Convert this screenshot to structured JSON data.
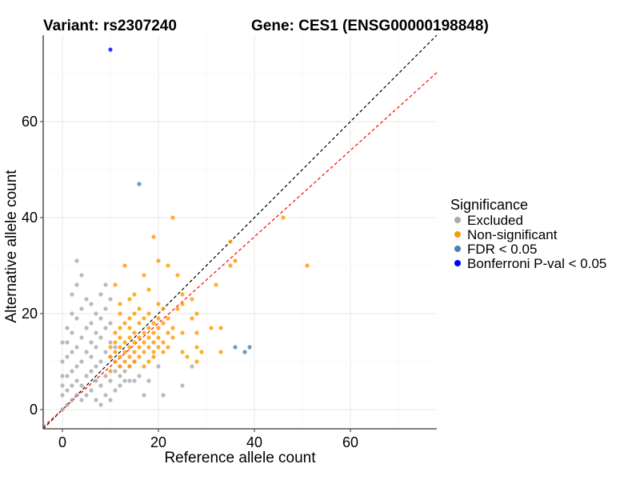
{
  "chart_data": {
    "type": "scatter",
    "title_variant": "Variant: rs2307240",
    "title_gene": "Gene: CES1 (ENSG00000198848)",
    "xlabel": "Reference allele count",
    "ylabel": "Alternative allele count",
    "xlim": [
      -4,
      78
    ],
    "ylim": [
      -4,
      78
    ],
    "x_ticks": [
      0,
      20,
      40,
      60
    ],
    "y_ticks": [
      0,
      20,
      40,
      60
    ],
    "grid": true,
    "legend_position": "right",
    "reference_lines": [
      {
        "name": "identity",
        "slope": 1.0,
        "intercept": 0,
        "color": "#000000",
        "style": "dashed"
      },
      {
        "name": "expected-ratio",
        "slope": 0.9,
        "intercept": 0,
        "color": "#ff0000",
        "style": "dashed"
      }
    ],
    "legend": {
      "title": "Significance",
      "entries": [
        {
          "label": "Excluded",
          "color": "#aaaaaa"
        },
        {
          "label": "Non-significant",
          "color": "#ff9900"
        },
        {
          "label": "FDR < 0.05",
          "color": "#4682b4"
        },
        {
          "label": "Bonferroni P-val < 0.05",
          "color": "#0000ff"
        }
      ]
    },
    "series": [
      {
        "name": "Excluded",
        "color": "#aaaaaa",
        "points": [
          [
            0,
            0
          ],
          [
            0,
            3
          ],
          [
            0,
            5
          ],
          [
            0,
            7
          ],
          [
            0,
            10
          ],
          [
            0,
            14
          ],
          [
            1,
            1
          ],
          [
            1,
            4
          ],
          [
            1,
            7
          ],
          [
            1,
            11
          ],
          [
            1,
            14
          ],
          [
            1,
            17
          ],
          [
            2,
            2
          ],
          [
            2,
            5
          ],
          [
            2,
            8
          ],
          [
            2,
            12
          ],
          [
            2,
            16
          ],
          [
            2,
            20
          ],
          [
            2,
            24
          ],
          [
            3,
            3
          ],
          [
            3,
            6
          ],
          [
            3,
            9
          ],
          [
            3,
            13
          ],
          [
            3,
            19
          ],
          [
            3,
            26
          ],
          [
            3,
            31
          ],
          [
            4,
            2
          ],
          [
            4,
            5
          ],
          [
            4,
            10
          ],
          [
            4,
            15
          ],
          [
            4,
            21
          ],
          [
            4,
            28
          ],
          [
            5,
            3
          ],
          [
            5,
            7
          ],
          [
            5,
            12
          ],
          [
            5,
            17
          ],
          [
            5,
            23
          ],
          [
            6,
            4
          ],
          [
            6,
            8
          ],
          [
            6,
            11
          ],
          [
            6,
            14
          ],
          [
            6,
            18
          ],
          [
            6,
            22
          ],
          [
            7,
            2
          ],
          [
            7,
            6
          ],
          [
            7,
            9
          ],
          [
            7,
            13
          ],
          [
            7,
            16
          ],
          [
            7,
            20
          ],
          [
            8,
            1
          ],
          [
            8,
            5
          ],
          [
            8,
            10
          ],
          [
            8,
            15
          ],
          [
            8,
            19
          ],
          [
            8,
            24
          ],
          [
            9,
            3
          ],
          [
            9,
            7
          ],
          [
            9,
            12
          ],
          [
            9,
            17
          ],
          [
            9,
            21
          ],
          [
            9,
            26
          ],
          [
            10,
            2
          ],
          [
            10,
            6
          ],
          [
            10,
            11
          ],
          [
            10,
            14
          ],
          [
            10,
            18
          ],
          [
            10,
            23
          ],
          [
            11,
            4
          ],
          [
            11,
            8
          ],
          [
            11,
            13
          ],
          [
            12,
            5
          ],
          [
            12,
            9
          ],
          [
            12,
            7
          ],
          [
            13,
            6
          ],
          [
            13,
            8
          ],
          [
            14,
            6
          ],
          [
            14,
            9
          ],
          [
            15,
            6
          ],
          [
            15,
            10
          ],
          [
            16,
            7
          ],
          [
            17,
            3
          ],
          [
            18,
            6
          ],
          [
            20,
            9
          ],
          [
            21,
            3
          ],
          [
            25,
            5
          ],
          [
            27,
            9
          ]
        ]
      },
      {
        "name": "Non-significant",
        "color": "#ff9900",
        "points": [
          [
            10,
            8
          ],
          [
            10,
            11
          ],
          [
            10,
            13
          ],
          [
            11,
            10
          ],
          [
            11,
            12
          ],
          [
            11,
            14
          ],
          [
            11,
            16
          ],
          [
            11,
            26
          ],
          [
            12,
            9
          ],
          [
            12,
            11
          ],
          [
            12,
            13
          ],
          [
            12,
            15
          ],
          [
            12,
            17
          ],
          [
            12,
            20
          ],
          [
            12,
            22
          ],
          [
            13,
            10
          ],
          [
            13,
            12
          ],
          [
            13,
            14
          ],
          [
            13,
            18
          ],
          [
            13,
            30
          ],
          [
            14,
            9
          ],
          [
            14,
            11
          ],
          [
            14,
            13
          ],
          [
            14,
            15
          ],
          [
            14,
            17
          ],
          [
            14,
            19
          ],
          [
            14,
            23
          ],
          [
            15,
            10
          ],
          [
            15,
            12
          ],
          [
            15,
            14
          ],
          [
            15,
            16
          ],
          [
            15,
            20
          ],
          [
            15,
            24
          ],
          [
            16,
            11
          ],
          [
            16,
            13
          ],
          [
            16,
            15
          ],
          [
            16,
            18
          ],
          [
            16,
            21
          ],
          [
            17,
            9
          ],
          [
            17,
            12
          ],
          [
            17,
            14
          ],
          [
            17,
            16
          ],
          [
            17,
            19
          ],
          [
            17,
            28
          ],
          [
            18,
            10
          ],
          [
            18,
            13
          ],
          [
            18,
            15
          ],
          [
            18,
            17
          ],
          [
            18,
            20
          ],
          [
            18,
            25
          ],
          [
            19,
            11
          ],
          [
            19,
            12
          ],
          [
            19,
            14
          ],
          [
            19,
            16
          ],
          [
            19,
            18
          ],
          [
            19,
            36
          ],
          [
            20,
            13
          ],
          [
            20,
            15
          ],
          [
            20,
            17
          ],
          [
            20,
            19
          ],
          [
            20,
            22
          ],
          [
            20,
            31
          ],
          [
            21,
            12
          ],
          [
            21,
            14
          ],
          [
            21,
            18
          ],
          [
            21,
            21
          ],
          [
            22,
            13
          ],
          [
            22,
            16
          ],
          [
            22,
            19
          ],
          [
            22,
            30
          ],
          [
            23,
            15
          ],
          [
            23,
            17
          ],
          [
            23,
            40
          ],
          [
            24,
            21
          ],
          [
            24,
            28
          ],
          [
            25,
            12
          ],
          [
            25,
            16
          ],
          [
            25,
            22
          ],
          [
            25,
            24
          ],
          [
            26,
            11
          ],
          [
            27,
            19
          ],
          [
            27,
            23
          ],
          [
            28,
            10
          ],
          [
            28,
            13
          ],
          [
            28,
            16
          ],
          [
            28,
            20
          ],
          [
            29,
            12
          ],
          [
            31,
            17
          ],
          [
            32,
            26
          ],
          [
            33,
            12
          ],
          [
            33,
            17
          ],
          [
            35,
            35
          ],
          [
            35,
            30
          ],
          [
            36,
            31
          ],
          [
            46,
            40
          ],
          [
            51,
            30
          ]
        ]
      },
      {
        "name": "FDR < 0.05",
        "color": "#4682b4",
        "points": [
          [
            16,
            47
          ],
          [
            36,
            13
          ],
          [
            38,
            12
          ],
          [
            39,
            13
          ]
        ]
      },
      {
        "name": "Bonferroni P-val < 0.05",
        "color": "#0000ff",
        "points": [
          [
            10,
            75
          ]
        ]
      }
    ]
  }
}
